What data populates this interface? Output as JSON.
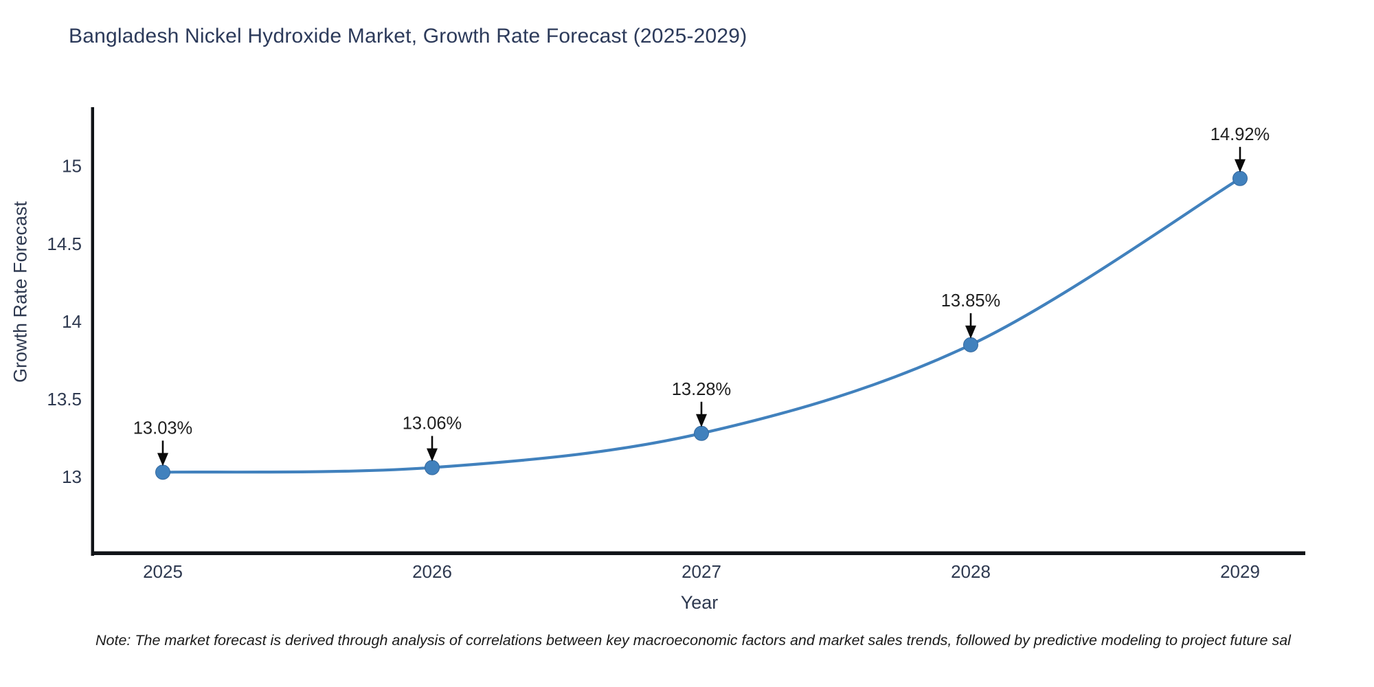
{
  "title": "Bangladesh Nickel Hydroxide Market, Growth Rate Forecast (2025-2029)",
  "note": "Note: The market forecast is derived through analysis of correlations between key macroeconomic factors and market sales trends, followed by predictive modeling to project future sal",
  "colors": {
    "title_text": "#2c3a5a",
    "axis_text": "#2e3950",
    "spine": "#101317",
    "line": "#4181bd",
    "marker": "#4181bd",
    "annotation_text": "#1f1f1f",
    "annotation_arrow": "#0a0a0a"
  },
  "chart_data": {
    "type": "line",
    "title": "Bangladesh Nickel Hydroxide Market, Growth Rate Forecast (2025-2029)",
    "xlabel": "Year",
    "ylabel": "Growth Rate Forecast",
    "x": [
      2025,
      2026,
      2027,
      2028,
      2029
    ],
    "values": [
      13.03,
      13.06,
      13.28,
      13.85,
      14.92
    ],
    "point_labels": [
      "13.03%",
      "13.06%",
      "13.28%",
      "13.85%",
      "14.92%"
    ],
    "xtick_labels": [
      "2025",
      "2026",
      "2027",
      "2028",
      "2029"
    ],
    "yticks": [
      13,
      13.5,
      14,
      14.5,
      15
    ],
    "ytick_labels": [
      "13",
      "13.5",
      "14",
      "14.5",
      "15"
    ],
    "ylim": [
      12.51,
      15.37
    ],
    "grid": false,
    "legend": false,
    "smooth": true,
    "annotations": "value labels with downward arrows above each point"
  }
}
